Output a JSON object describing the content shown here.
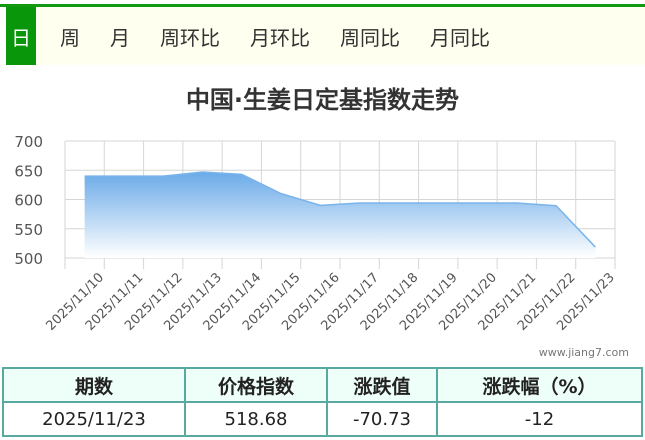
{
  "tabs": [
    "日",
    "周",
    "月",
    "周环比",
    "月环比",
    "周同比",
    "月同比"
  ],
  "active_tab": "日",
  "chart_data": {
    "type": "area",
    "title": "中国·生姜日定基指数走势",
    "categories": [
      "2025/11/10",
      "2025/11/11",
      "2025/11/12",
      "2025/11/13",
      "2025/11/14",
      "2025/11/15",
      "2025/11/16",
      "2025/11/17",
      "2025/11/18",
      "2025/11/19",
      "2025/11/20",
      "2025/11/21",
      "2025/11/22",
      "2025/11/23"
    ],
    "values": [
      640,
      640,
      640,
      647,
      643,
      610,
      590,
      594,
      594,
      594,
      594,
      594,
      589.41,
      518.68
    ],
    "ylim": [
      500,
      700
    ],
    "yticks": [
      500,
      550,
      600,
      650,
      700
    ],
    "grid": true,
    "color": "#7ab4ea"
  },
  "watermark": "www.jiang7.com",
  "table": {
    "headers": [
      "期数",
      "价格指数",
      "涨跌值",
      "涨跌幅（%）"
    ],
    "row": [
      "2025/11/23",
      "518.68",
      "-70.73",
      "-12"
    ]
  }
}
